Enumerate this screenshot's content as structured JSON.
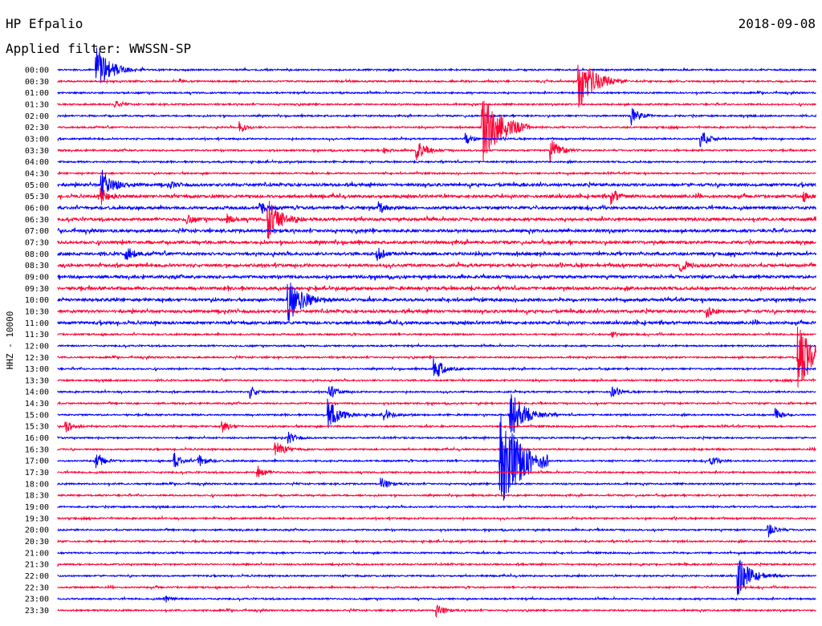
{
  "header": {
    "station": "HP Efpalio",
    "date": "2018-09-08",
    "filter": "Applied filter: WWSSN-SP"
  },
  "chart_data": {
    "type": "line",
    "title": "HP Efpalio",
    "ylabel": "HHZ - 10000",
    "colors": [
      "#0000ff",
      "#ff0033"
    ],
    "minutes_per_row": 30,
    "rows": [
      "00:00",
      "00:30",
      "01:00",
      "01:30",
      "02:00",
      "02:30",
      "03:00",
      "03:30",
      "04:00",
      "04:30",
      "05:00",
      "05:30",
      "06:00",
      "06:30",
      "07:00",
      "07:30",
      "08:00",
      "08:30",
      "09:00",
      "09:30",
      "10:00",
      "10:30",
      "11:00",
      "11:30",
      "12:00",
      "12:30",
      "13:00",
      "13:30",
      "14:00",
      "14:30",
      "15:00",
      "15:30",
      "16:00",
      "16:30",
      "17:00",
      "17:30",
      "18:00",
      "18:30",
      "19:00",
      "19:30",
      "20:00",
      "20:30",
      "21:00",
      "21:30",
      "22:00",
      "22:30",
      "23:00",
      "23:30"
    ],
    "events": [
      [
        0,
        1.5,
        30
      ],
      [
        1,
        20.6,
        35
      ],
      [
        1,
        4.8,
        3
      ],
      [
        3,
        2.2,
        6
      ],
      [
        4,
        22.7,
        12
      ],
      [
        5,
        7.2,
        7
      ],
      [
        5,
        16.8,
        45
      ],
      [
        6,
        25.4,
        12
      ],
      [
        6,
        16.1,
        8
      ],
      [
        7,
        19.5,
        15
      ],
      [
        7,
        14.2,
        14
      ],
      [
        7,
        12.9,
        4
      ],
      [
        10,
        1.7,
        20
      ],
      [
        10,
        4.4,
        5
      ],
      [
        11,
        1.7,
        10
      ],
      [
        11,
        21.9,
        10
      ],
      [
        11,
        29.5,
        5
      ],
      [
        12,
        8.0,
        8
      ],
      [
        12,
        12.7,
        8
      ],
      [
        13,
        5.1,
        6
      ],
      [
        13,
        6.7,
        6
      ],
      [
        13,
        8.3,
        25
      ],
      [
        16,
        2.7,
        10
      ],
      [
        16,
        12.6,
        10
      ],
      [
        17,
        24.6,
        10
      ],
      [
        20,
        9.1,
        30
      ],
      [
        21,
        25.7,
        8
      ],
      [
        23,
        21.9,
        5
      ],
      [
        25,
        29.3,
        40
      ],
      [
        26,
        14.9,
        15
      ],
      [
        28,
        10.7,
        10
      ],
      [
        28,
        21.9,
        8
      ],
      [
        28,
        7.6,
        8
      ],
      [
        30,
        10.7,
        20
      ],
      [
        30,
        12.9,
        8
      ],
      [
        30,
        17.9,
        30
      ],
      [
        30,
        28.4,
        8
      ],
      [
        31,
        0.3,
        8
      ],
      [
        31,
        6.5,
        8
      ],
      [
        32,
        9.1,
        8
      ],
      [
        33,
        8.6,
        12
      ],
      [
        34,
        17.5,
        60
      ],
      [
        34,
        25.8,
        8
      ],
      [
        34,
        1.5,
        10
      ],
      [
        34,
        4.6,
        10
      ],
      [
        34,
        5.5,
        10
      ],
      [
        35,
        7.9,
        8
      ],
      [
        36,
        12.8,
        8
      ],
      [
        40,
        28.1,
        10
      ],
      [
        44,
        26.9,
        25
      ],
      [
        46,
        4.2,
        6
      ],
      [
        47,
        15.0,
        8
      ]
    ]
  }
}
